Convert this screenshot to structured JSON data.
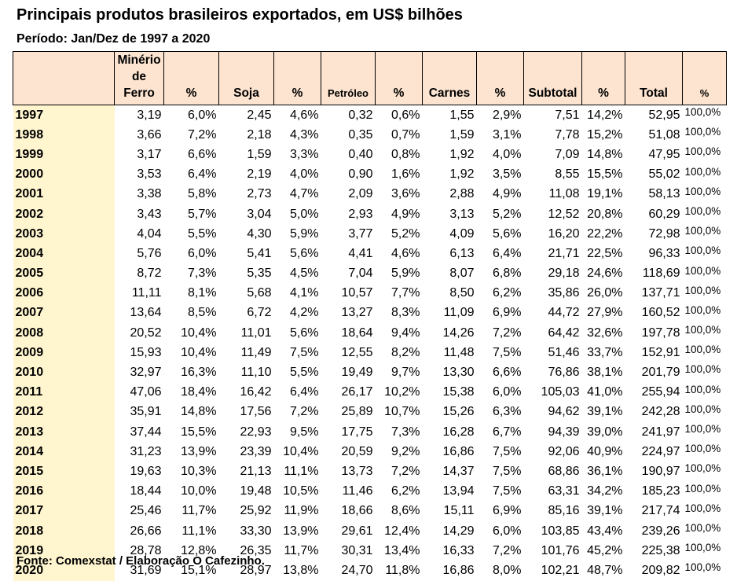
{
  "title": "Principais produtos brasileiros exportados, em US$ bilhões",
  "subtitle": "Período: Jan/Dez de 1997 a 2020",
  "source": "Fonte: Comexstat / Elaboração O Cafezinho.",
  "colors": {
    "header_bg": "#fce4d0",
    "year_bg": "#fff5cf"
  },
  "headers": [
    "",
    "Minério de Ferro",
    "%",
    "Soja",
    "%",
    "Petróleo",
    "%",
    "Carnes",
    "%",
    "Subtotal",
    "%",
    "Total",
    "%"
  ],
  "rows": [
    [
      "1997",
      "3,19",
      "6,0%",
      "2,45",
      "4,6%",
      "0,32",
      "0,6%",
      "1,55",
      "2,9%",
      "7,51",
      "14,2%",
      "52,95",
      "100,0%"
    ],
    [
      "1998",
      "3,66",
      "7,2%",
      "2,18",
      "4,3%",
      "0,35",
      "0,7%",
      "1,59",
      "3,1%",
      "7,78",
      "15,2%",
      "51,08",
      "100,0%"
    ],
    [
      "1999",
      "3,17",
      "6,6%",
      "1,59",
      "3,3%",
      "0,40",
      "0,8%",
      "1,92",
      "4,0%",
      "7,09",
      "14,8%",
      "47,95",
      "100,0%"
    ],
    [
      "2000",
      "3,53",
      "6,4%",
      "2,19",
      "4,0%",
      "0,90",
      "1,6%",
      "1,92",
      "3,5%",
      "8,55",
      "15,5%",
      "55,02",
      "100,0%"
    ],
    [
      "2001",
      "3,38",
      "5,8%",
      "2,73",
      "4,7%",
      "2,09",
      "3,6%",
      "2,88",
      "4,9%",
      "11,08",
      "19,1%",
      "58,13",
      "100,0%"
    ],
    [
      "2002",
      "3,43",
      "5,7%",
      "3,04",
      "5,0%",
      "2,93",
      "4,9%",
      "3,13",
      "5,2%",
      "12,52",
      "20,8%",
      "60,29",
      "100,0%"
    ],
    [
      "2003",
      "4,04",
      "5,5%",
      "4,30",
      "5,9%",
      "3,77",
      "5,2%",
      "4,09",
      "5,6%",
      "16,20",
      "22,2%",
      "72,98",
      "100,0%"
    ],
    [
      "2004",
      "5,76",
      "6,0%",
      "5,41",
      "5,6%",
      "4,41",
      "4,6%",
      "6,13",
      "6,4%",
      "21,71",
      "22,5%",
      "96,33",
      "100,0%"
    ],
    [
      "2005",
      "8,72",
      "7,3%",
      "5,35",
      "4,5%",
      "7,04",
      "5,9%",
      "8,07",
      "6,8%",
      "29,18",
      "24,6%",
      "118,69",
      "100,0%"
    ],
    [
      "2006",
      "11,11",
      "8,1%",
      "5,68",
      "4,1%",
      "10,57",
      "7,7%",
      "8,50",
      "6,2%",
      "35,86",
      "26,0%",
      "137,71",
      "100,0%"
    ],
    [
      "2007",
      "13,64",
      "8,5%",
      "6,72",
      "4,2%",
      "13,27",
      "8,3%",
      "11,09",
      "6,9%",
      "44,72",
      "27,9%",
      "160,52",
      "100,0%"
    ],
    [
      "2008",
      "20,52",
      "10,4%",
      "11,01",
      "5,6%",
      "18,64",
      "9,4%",
      "14,26",
      "7,2%",
      "64,42",
      "32,6%",
      "197,78",
      "100,0%"
    ],
    [
      "2009",
      "15,93",
      "10,4%",
      "11,49",
      "7,5%",
      "12,55",
      "8,2%",
      "11,48",
      "7,5%",
      "51,46",
      "33,7%",
      "152,91",
      "100,0%"
    ],
    [
      "2010",
      "32,97",
      "16,3%",
      "11,10",
      "5,5%",
      "19,49",
      "9,7%",
      "13,30",
      "6,6%",
      "76,86",
      "38,1%",
      "201,79",
      "100,0%"
    ],
    [
      "2011",
      "47,06",
      "18,4%",
      "16,42",
      "6,4%",
      "26,17",
      "10,2%",
      "15,38",
      "6,0%",
      "105,03",
      "41,0%",
      "255,94",
      "100,0%"
    ],
    [
      "2012",
      "35,91",
      "14,8%",
      "17,56",
      "7,2%",
      "25,89",
      "10,7%",
      "15,26",
      "6,3%",
      "94,62",
      "39,1%",
      "242,28",
      "100,0%"
    ],
    [
      "2013",
      "37,44",
      "15,5%",
      "22,93",
      "9,5%",
      "17,75",
      "7,3%",
      "16,28",
      "6,7%",
      "94,39",
      "39,0%",
      "241,97",
      "100,0%"
    ],
    [
      "2014",
      "31,23",
      "13,9%",
      "23,39",
      "10,4%",
      "20,59",
      "9,2%",
      "16,86",
      "7,5%",
      "92,06",
      "40,9%",
      "224,97",
      "100,0%"
    ],
    [
      "2015",
      "19,63",
      "10,3%",
      "21,13",
      "11,1%",
      "13,73",
      "7,2%",
      "14,37",
      "7,5%",
      "68,86",
      "36,1%",
      "190,97",
      "100,0%"
    ],
    [
      "2016",
      "18,44",
      "10,0%",
      "19,48",
      "10,5%",
      "11,46",
      "6,2%",
      "13,94",
      "7,5%",
      "63,31",
      "34,2%",
      "185,23",
      "100,0%"
    ],
    [
      "2017",
      "25,46",
      "11,7%",
      "25,92",
      "11,9%",
      "18,66",
      "8,6%",
      "15,11",
      "6,9%",
      "85,16",
      "39,1%",
      "217,74",
      "100,0%"
    ],
    [
      "2018",
      "26,66",
      "11,1%",
      "33,30",
      "13,9%",
      "29,61",
      "12,4%",
      "14,29",
      "6,0%",
      "103,85",
      "43,4%",
      "239,26",
      "100,0%"
    ],
    [
      "2019",
      "28,78",
      "12,8%",
      "26,35",
      "11,7%",
      "30,31",
      "13,4%",
      "16,33",
      "7,2%",
      "101,76",
      "45,2%",
      "225,38",
      "100,0%"
    ],
    [
      "2020",
      "31,69",
      "15,1%",
      "28,97",
      "13,8%",
      "24,70",
      "11,8%",
      "16,86",
      "8,0%",
      "102,21",
      "48,7%",
      "209,82",
      "100,0%"
    ]
  ]
}
